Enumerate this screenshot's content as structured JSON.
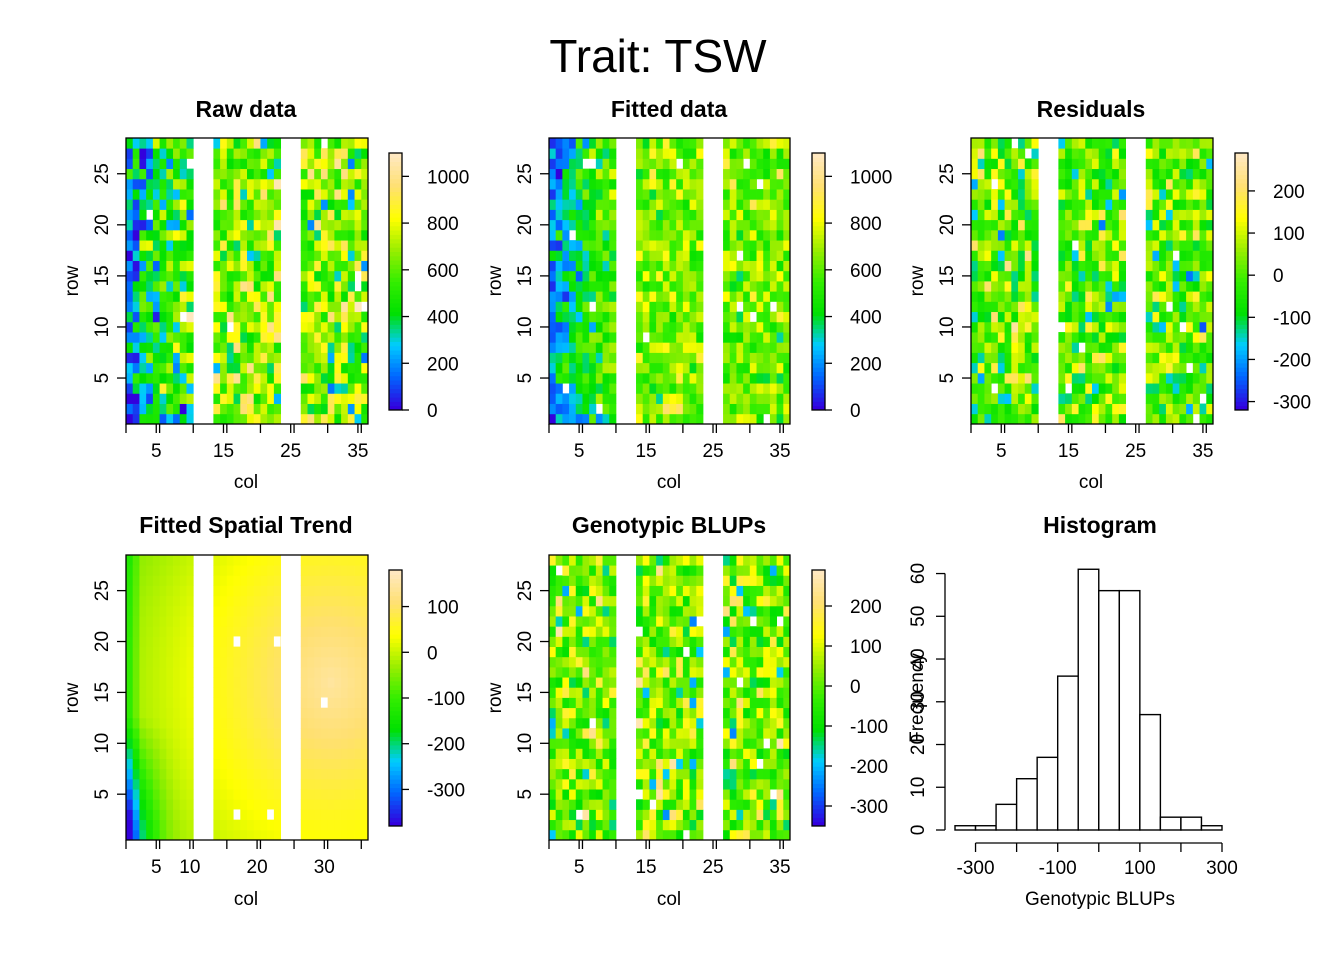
{
  "figure": {
    "title": "Trait: TSW"
  },
  "chart_data": [
    {
      "type": "heatmap",
      "title": "Raw data",
      "xlabel": "col",
      "ylabel": "row",
      "xlim": [
        0.5,
        36.5
      ],
      "ylim": [
        0.5,
        28.5
      ],
      "xticks": [
        5,
        15,
        25,
        35
      ],
      "yticks": [
        5,
        10,
        15,
        20,
        25
      ],
      "empty_cols": [
        11,
        12,
        13,
        24,
        25,
        26
      ],
      "colorbar": {
        "range": [
          0,
          1100
        ],
        "ticks": [
          0,
          200,
          400,
          600,
          800,
          1000
        ]
      },
      "value_model": {
        "mean": 650,
        "spread": 180,
        "left_gradient": -420,
        "left_cols": 10,
        "bottom_drop": -180,
        "seed": 11
      },
      "colorscale": [
        "#3300dd",
        "#0066ff",
        "#00ccff",
        "#00e000",
        "#33ee00",
        "#99ee00",
        "#ffff00",
        "#ffe070",
        "#ffe8c0"
      ]
    },
    {
      "type": "heatmap",
      "title": "Fitted data",
      "xlabel": "col",
      "ylabel": "row",
      "xlim": [
        0.5,
        36.5
      ],
      "ylim": [
        0.5,
        28.5
      ],
      "xticks": [
        5,
        15,
        25,
        35
      ],
      "yticks": [
        5,
        10,
        15,
        20,
        25
      ],
      "empty_cols": [
        11,
        12,
        13,
        24,
        25,
        26
      ],
      "colorbar": {
        "range": [
          0,
          1100
        ],
        "ticks": [
          0,
          200,
          400,
          600,
          800,
          1000
        ]
      },
      "value_model": {
        "mean": 640,
        "spread": 120,
        "left_gradient": -400,
        "left_cols": 10,
        "bottom_drop": -160,
        "seed": 23
      },
      "colorscale": [
        "#3300dd",
        "#0066ff",
        "#00ccff",
        "#00e000",
        "#33ee00",
        "#99ee00",
        "#ffff00",
        "#ffe070",
        "#ffe8c0"
      ]
    },
    {
      "type": "heatmap",
      "title": "Residuals",
      "xlabel": "col",
      "ylabel": "row",
      "xlim": [
        0.5,
        36.5
      ],
      "ylim": [
        0.5,
        28.5
      ],
      "xticks": [
        5,
        15,
        25,
        35
      ],
      "yticks": [
        5,
        10,
        15,
        20,
        25
      ],
      "empty_cols": [
        11,
        12,
        13,
        24,
        25,
        26
      ],
      "colorbar": {
        "range": [
          -320,
          290
        ],
        "ticks": [
          -300,
          -200,
          -100,
          0,
          100,
          200
        ]
      },
      "value_model": {
        "mean": 10,
        "spread": 95,
        "left_gradient": 0,
        "left_cols": 0,
        "bottom_drop": 0,
        "seed": 37
      },
      "colorscale": [
        "#3300dd",
        "#0066ff",
        "#00ccff",
        "#00e000",
        "#33ee00",
        "#99ee00",
        "#ffff00",
        "#ffe070",
        "#ffe8c0"
      ]
    },
    {
      "type": "heatmap",
      "title": "Fitted Spatial Trend",
      "xlabel": "col",
      "ylabel": "row",
      "xlim": [
        0.5,
        36.5
      ],
      "ylim": [
        0.5,
        28.5
      ],
      "xticks": [
        5,
        10,
        20,
        30
      ],
      "yticks": [
        5,
        10,
        15,
        20,
        25
      ],
      "empty_cols": [
        11,
        12,
        13,
        24,
        25,
        26
      ],
      "colorbar": {
        "range": [
          -380,
          180
        ],
        "ticks": [
          -300,
          -200,
          -100,
          0,
          100
        ]
      },
      "smooth": true,
      "colorscale": [
        "#3300dd",
        "#0066ff",
        "#00ccff",
        "#00e000",
        "#33ee00",
        "#99ee00",
        "#ffff00",
        "#ffe070",
        "#ffe8c0"
      ]
    },
    {
      "type": "heatmap",
      "title": "Genotypic BLUPs",
      "xlabel": "col",
      "ylabel": "row",
      "xlim": [
        0.5,
        36.5
      ],
      "ylim": [
        0.5,
        28.5
      ],
      "xticks": [
        5,
        15,
        25,
        35
      ],
      "yticks": [
        5,
        10,
        15,
        20,
        25
      ],
      "empty_cols": [
        11,
        12,
        13,
        24,
        25,
        26
      ],
      "colorbar": {
        "range": [
          -350,
          290
        ],
        "ticks": [
          -300,
          -200,
          -100,
          0,
          100,
          200
        ]
      },
      "value_model": {
        "mean": 20,
        "spread": 100,
        "left_gradient": 0,
        "left_cols": 0,
        "bottom_drop": 0,
        "seed": 53
      },
      "colorscale": [
        "#3300dd",
        "#0066ff",
        "#00ccff",
        "#00e000",
        "#33ee00",
        "#99ee00",
        "#ffff00",
        "#ffe070",
        "#ffe8c0"
      ]
    },
    {
      "type": "bar",
      "subtype": "histogram",
      "title": "Histogram",
      "xlabel": "Genotypic BLUPs",
      "ylabel": "Frequency",
      "xlim": [
        -350,
        300
      ],
      "ylim": [
        0,
        62
      ],
      "xticks": [
        -300,
        -100,
        100,
        300
      ],
      "yticks": [
        0,
        10,
        20,
        30,
        40,
        50,
        60
      ],
      "bin_edges": [
        -350,
        -300,
        -250,
        -200,
        -150,
        -100,
        -50,
        0,
        50,
        100,
        150,
        200,
        250,
        300
      ],
      "values": [
        1,
        1,
        6,
        12,
        17,
        36,
        61,
        56,
        56,
        27,
        3,
        3,
        1
      ]
    }
  ]
}
